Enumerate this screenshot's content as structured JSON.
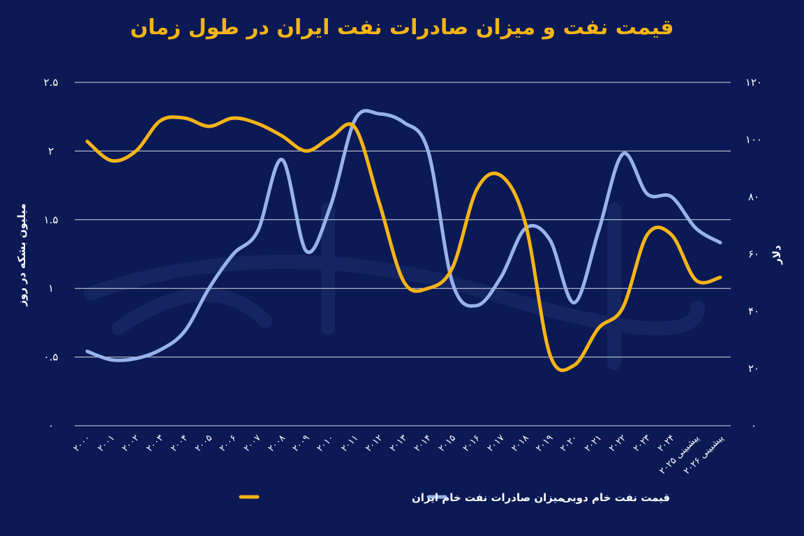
{
  "title": "قیمت نفت و میزان صادرات نفت ایران در طول زمان",
  "chart_data": {
    "type": "line",
    "title": "قیمت نفت و میزان صادرات نفت ایران در طول زمان",
    "ylabel_left": "میلیون بشکه در روز",
    "ylabel_right": "دلار",
    "ylim_left": [
      0,
      2.5
    ],
    "ylim_right": [
      0,
      120
    ],
    "yticks_left": [
      "0",
      "0.5",
      "1",
      "1.5",
      "2",
      "2.5"
    ],
    "yticks_right": [
      "0",
      "20",
      "40",
      "60",
      "80",
      "100",
      "120"
    ],
    "grid": true,
    "legend_position": "bottom",
    "categories": [
      "2000",
      "2001",
      "2002",
      "2003",
      "2004",
      "2005",
      "2006",
      "2007",
      "2008",
      "2009",
      "2010",
      "2011",
      "2012",
      "2013",
      "2014",
      "2015",
      "2016",
      "2017",
      "2018",
      "2019",
      "2020",
      "2021",
      "2022",
      "2023",
      "2024",
      "پیشبینی 2025",
      "پیشبینی 2026"
    ],
    "category_labels": [
      "۲۰۰۰",
      "۲۰۰۱",
      "۲۰۰۲",
      "۲۰۰۳",
      "۲۰۰۴",
      "۲۰۰۵",
      "۲۰۰۶",
      "۲۰۰۷",
      "۲۰۰۸",
      "۲۰۰۹",
      "۲۰۱۰",
      "۲۰۱۱",
      "۲۰۱۲",
      "۲۰۱۳",
      "۲۰۱۴",
      "۲۰۱۵",
      "۲۰۱۶",
      "۲۰۱۷",
      "۲۰۱۸",
      "۲۰۱۹",
      "۲۰۲۰",
      "۲۰۲۱",
      "۲۰۲۲",
      "۲۰۲۳",
      "۲۰۲۴",
      "پیشبینی ۲۰۲۵",
      "پیشبینی ۲۰۲۶"
    ],
    "series": [
      {
        "name": "میزان صادرات نفت خام ایران",
        "axis": "left",
        "color": "#f6b416",
        "values": [
          2.07,
          1.93,
          2.0,
          2.22,
          2.24,
          2.18,
          2.24,
          2.2,
          2.11,
          2.0,
          2.1,
          2.17,
          1.62,
          1.05,
          1.0,
          1.15,
          1.72,
          1.82,
          1.47,
          0.52,
          0.44,
          0.71,
          0.86,
          1.39,
          1.39,
          1.06,
          1.08
        ]
      },
      {
        "name": "قیمت نفت خام دوبی",
        "axis": "right",
        "color": "#97b3eb",
        "values": [
          26,
          23,
          23.5,
          26.5,
          33,
          48,
          60,
          68,
          93,
          61,
          77,
          107,
          109,
          106,
          96,
          50,
          42,
          52,
          69,
          65,
          43,
          68,
          95,
          81,
          80,
          69,
          64
        ]
      }
    ]
  }
}
